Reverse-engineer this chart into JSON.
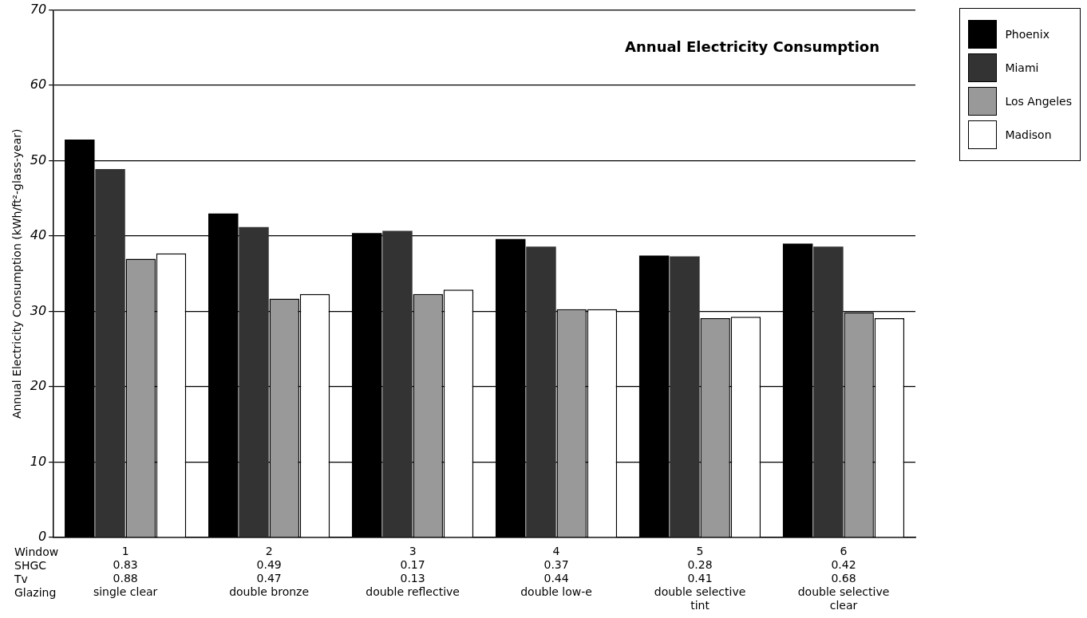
{
  "chart_data": {
    "type": "bar",
    "title": "Annual Electricity Consumption",
    "ylabel": "Annual Electricity Consumption (kWh/ft²-glass-year)",
    "categories": [
      "1\n0.83\n0.88\nsingle clear",
      "2\n0.49\n0.47\ndouble bronze",
      "3\n0.17\n0.13\ndouble reflective",
      "4\n0.37\n0.44\ndouble low-e",
      "5\n0.28\n0.41\ndouble selective\ntint",
      "6\n0.42\n0.68\ndouble selective\nclear"
    ],
    "series": [
      {
        "name": "Phoenix",
        "color": "#000000",
        "values": [
          52.8,
          43.0,
          40.4,
          39.6,
          37.4,
          39.0
        ]
      },
      {
        "name": "Miami",
        "color": "#333333",
        "values": [
          48.9,
          41.2,
          40.7,
          38.6,
          37.3,
          38.6
        ]
      },
      {
        "name": "Los Angeles",
        "color": "#999999",
        "values": [
          37.0,
          31.7,
          32.3,
          30.3,
          29.1,
          29.9
        ]
      },
      {
        "name": "Madison",
        "color": "#ffffff",
        "values": [
          37.7,
          32.3,
          32.9,
          30.3,
          29.3,
          29.1
        ]
      }
    ],
    "annotations": [
      "Window",
      "SHGC",
      "Tv",
      "Glazing"
    ],
    "ylim": [
      0,
      70
    ],
    "yticks": [
      0,
      10,
      20,
      30,
      40,
      50,
      60,
      70
    ],
    "grid": "y",
    "legend": "top right"
  }
}
